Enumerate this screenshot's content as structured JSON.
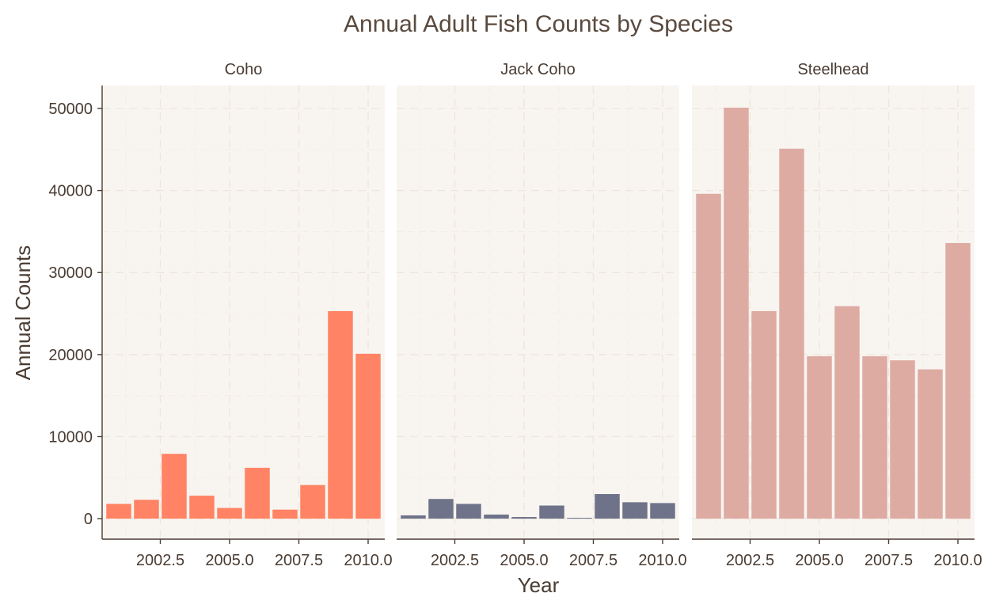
{
  "chart_data": {
    "type": "bar",
    "title": "Annual Adult Fish Counts by Species",
    "xlabel": "Year",
    "ylabel": "Annual Counts",
    "xlim": [
      2000.4,
      2010.6
    ],
    "ylim": [
      -2500,
      52800
    ],
    "x_ticks": [
      "2002.5",
      "2005.0",
      "2007.5",
      "2010.0"
    ],
    "y_ticks": [
      "0",
      "10000",
      "20000",
      "30000",
      "40000",
      "50000"
    ],
    "grid": true,
    "legend": "none",
    "years": [
      2001,
      2002,
      2003,
      2004,
      2005,
      2006,
      2007,
      2008,
      2009,
      2010
    ],
    "panels": [
      {
        "name": "Coho",
        "color": "#FF8364",
        "values": [
          1800,
          2300,
          7900,
          2800,
          1300,
          6200,
          1100,
          4100,
          25300,
          20100
        ]
      },
      {
        "name": "Jack Coho",
        "color": "#6F738A",
        "values": [
          400,
          2400,
          1800,
          500,
          200,
          1600,
          100,
          3000,
          2000,
          1900
        ]
      },
      {
        "name": "Steelhead",
        "color": "#DEABA2",
        "values": [
          39600,
          50100,
          25300,
          45100,
          19800,
          25900,
          19800,
          19300,
          18200,
          33600
        ]
      }
    ]
  }
}
